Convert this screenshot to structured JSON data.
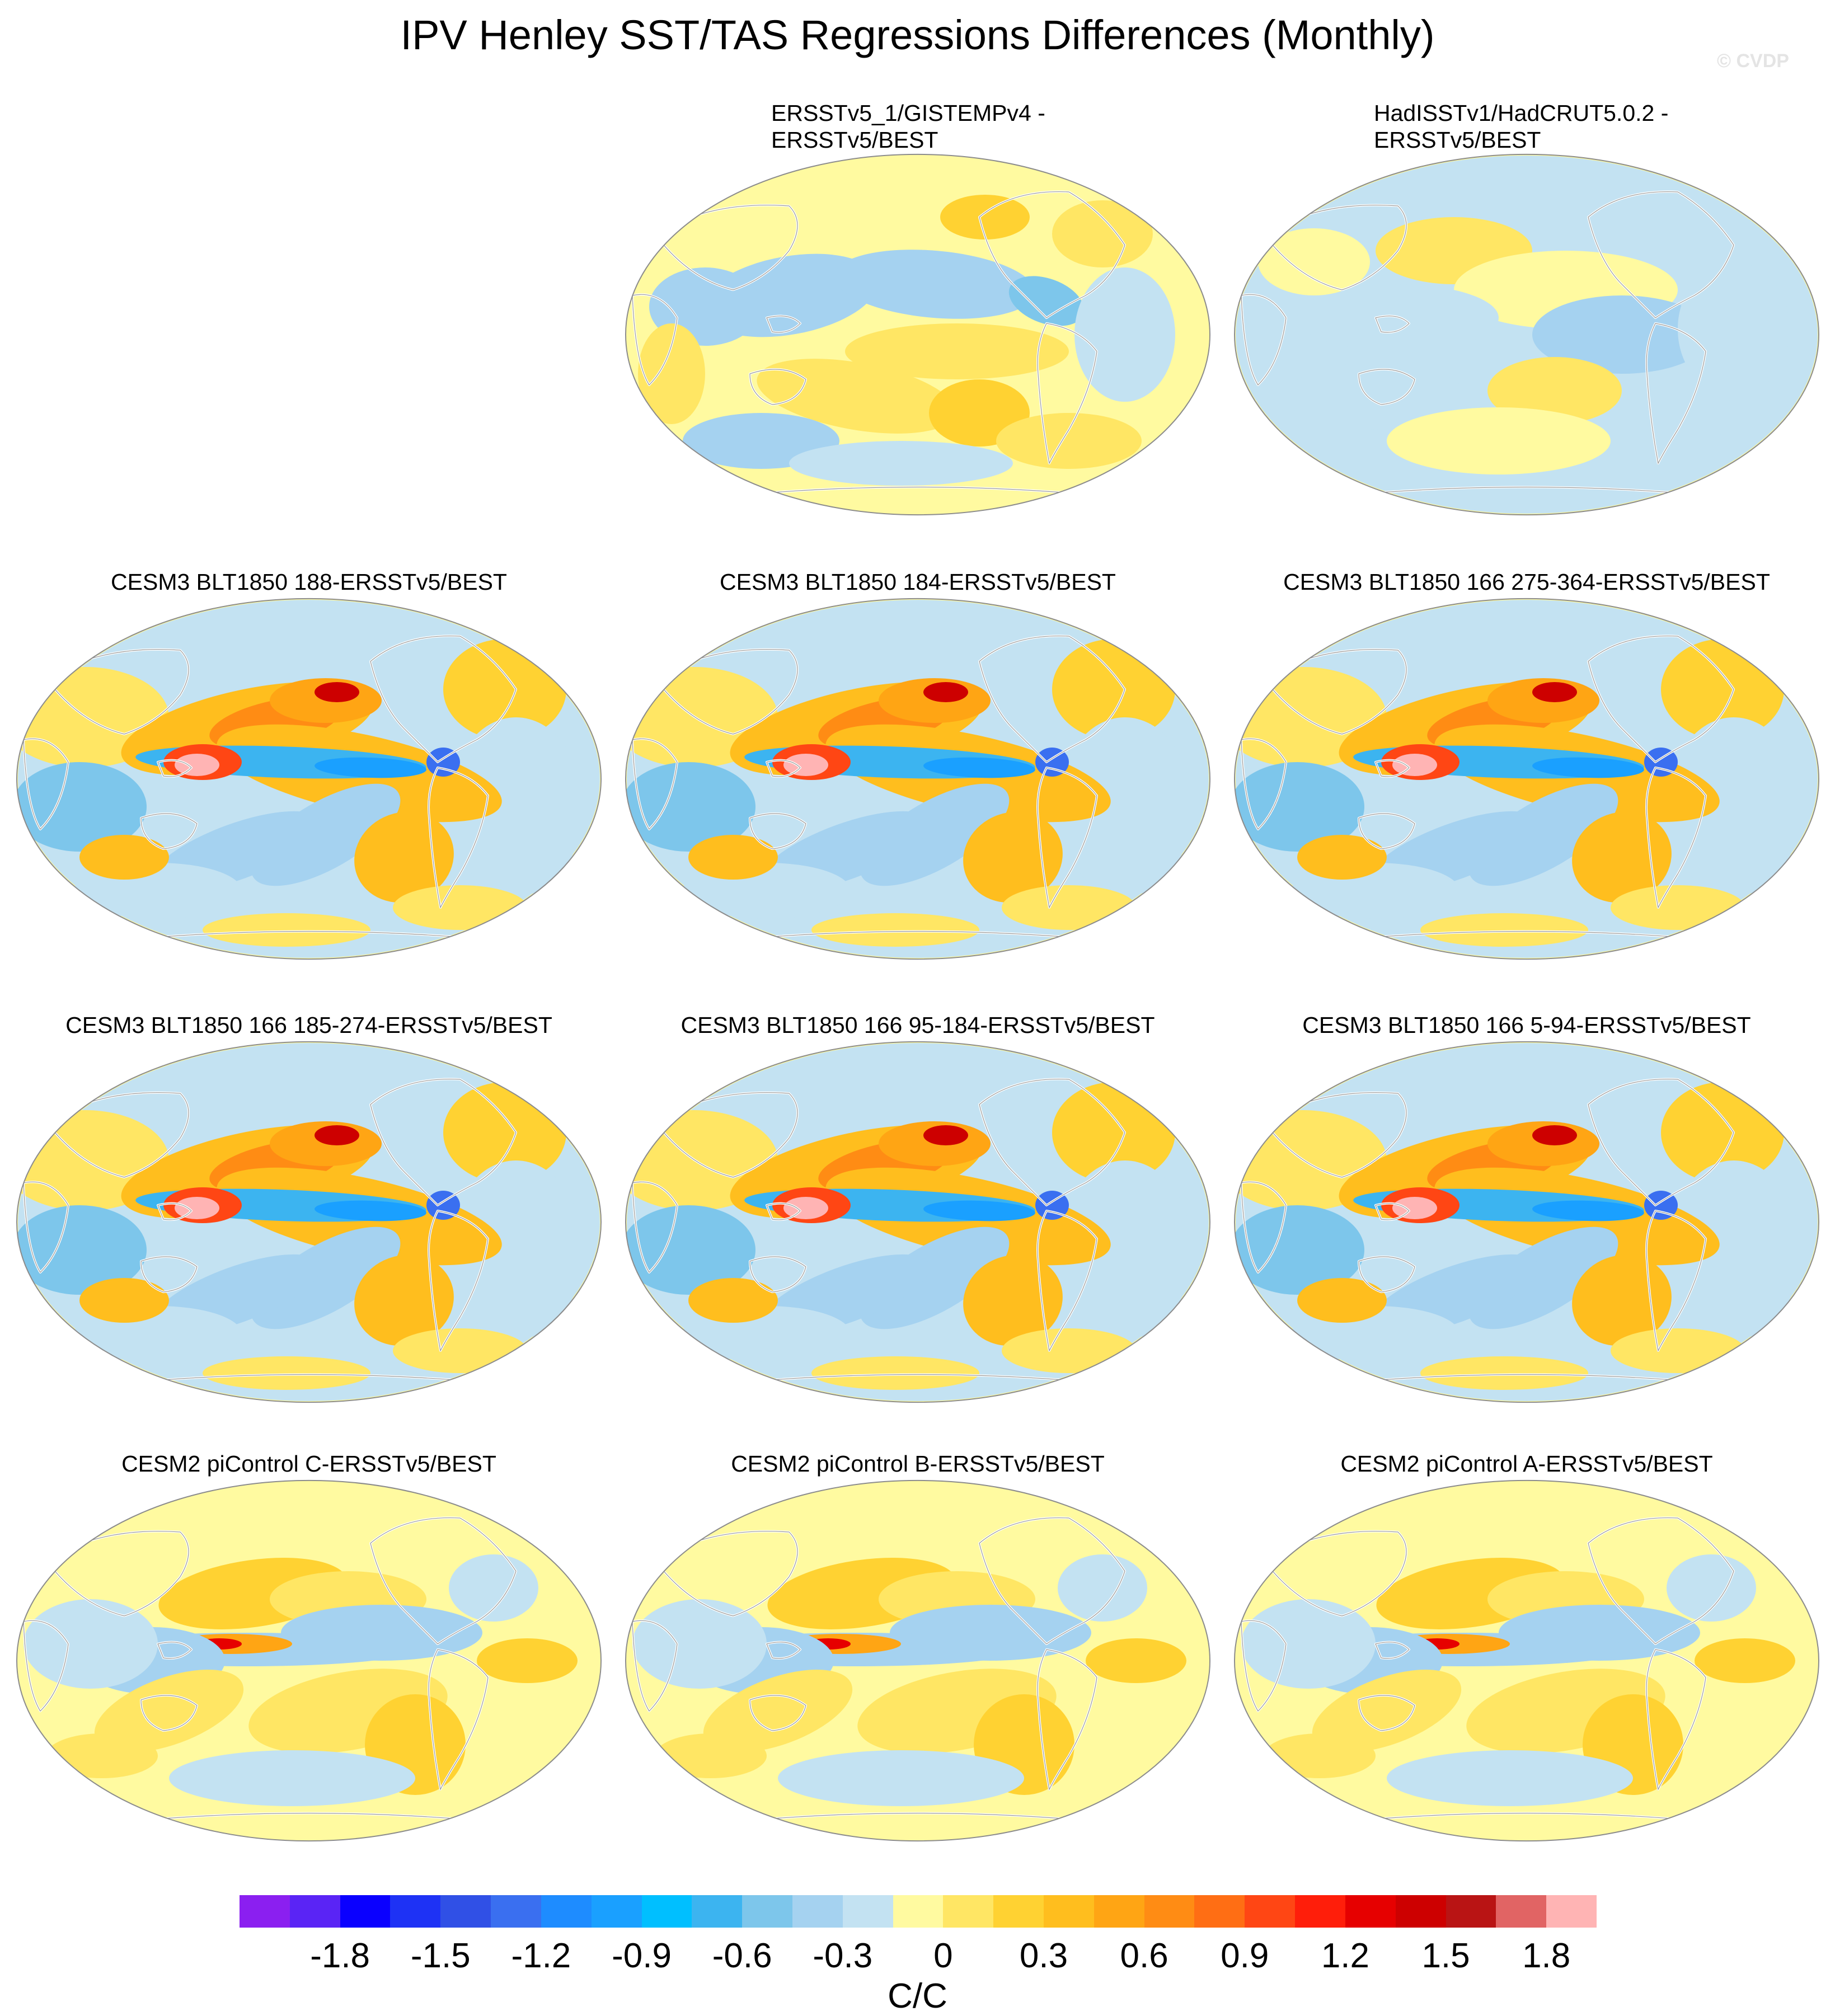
{
  "title": "IPV Henley SST/TAS Regressions Differences (Monthly)",
  "watermark": "© CVDP",
  "panels": [
    {
      "id": "p1",
      "title_line1": "ERSSTv5_1/GISTEMPv4 -",
      "title_line2": "ERSSTv5/BEST",
      "style": "obs1"
    },
    {
      "id": "p2",
      "title_line1": "HadISSTv1/HadCRUT5.0.2 -",
      "title_line2": "ERSSTv5/BEST",
      "style": "obs2"
    },
    {
      "id": "p3",
      "title_line1": "CESM3 BLT1850 188-ERSSTv5/BEST",
      "title_line2": "",
      "style": "blt"
    },
    {
      "id": "p4",
      "title_line1": "CESM3 BLT1850 184-ERSSTv5/BEST",
      "title_line2": "",
      "style": "blt"
    },
    {
      "id": "p5",
      "title_line1": "CESM3 BLT1850 166 275-364-ERSSTv5/BEST",
      "title_line2": "",
      "style": "blt"
    },
    {
      "id": "p6",
      "title_line1": "CESM3 BLT1850 166 185-274-ERSSTv5/BEST",
      "title_line2": "",
      "style": "blt"
    },
    {
      "id": "p7",
      "title_line1": "CESM3 BLT1850 166 95-184-ERSSTv5/BEST",
      "title_line2": "",
      "style": "blt"
    },
    {
      "id": "p8",
      "title_line1": "CESM3 BLT1850 166 5-94-ERSSTv5/BEST",
      "title_line2": "",
      "style": "blt"
    },
    {
      "id": "p9",
      "title_line1": "CESM2 piControl C-ERSSTv5/BEST",
      "title_line2": "",
      "style": "pic"
    },
    {
      "id": "p10",
      "title_line1": "CESM2 piControl B-ERSSTv5/BEST",
      "title_line2": "",
      "style": "pic"
    },
    {
      "id": "p11",
      "title_line1": "CESM2 piControl A-ERSSTv5/BEST",
      "title_line2": "",
      "style": "pic"
    }
  ],
  "chart_data": {
    "type": "heatmap",
    "projection": "Robinson (global, Pacific-centered)",
    "title": "IPV Henley SST/TAS Regressions Differences (Monthly)",
    "colorbar": {
      "units": "C/C",
      "tick_labels": [
        "-1.8",
        "-1.5",
        "-1.2",
        "-0.9",
        "-0.6",
        "-0.3",
        "0",
        "0.3",
        "0.6",
        "0.9",
        "1.2",
        "1.5",
        "1.8"
      ],
      "tick_values": [
        -1.8,
        -1.5,
        -1.2,
        -0.9,
        -0.6,
        -0.3,
        0,
        0.3,
        0.6,
        0.9,
        1.2,
        1.5,
        1.8
      ],
      "levels": [
        -1.95,
        -1.8,
        -1.65,
        -1.5,
        -1.35,
        -1.2,
        -1.05,
        -0.9,
        -0.75,
        -0.6,
        -0.45,
        -0.3,
        -0.15,
        0,
        0.15,
        0.3,
        0.45,
        0.6,
        0.75,
        0.9,
        1.05,
        1.2,
        1.35,
        1.5,
        1.65,
        1.8,
        1.95
      ],
      "colors": [
        "#8b1ff0",
        "#5a24f5",
        "#0a00ff",
        "#1e32f5",
        "#3050e6",
        "#3a6ff0",
        "#1e8cff",
        "#1aa0ff",
        "#00bfff",
        "#3cb4f0",
        "#7dc6eb",
        "#a5d2f0",
        "#c3e2f2",
        "#fffaa0",
        "#ffe664",
        "#ffd232",
        "#ffbe1e",
        "#ffa514",
        "#ff8c14",
        "#ff6e14",
        "#ff4614",
        "#ff1e0a",
        "#e60000",
        "#cd0000",
        "#b91414",
        "#e16464",
        "#ffb4b4"
      ]
    }
  }
}
